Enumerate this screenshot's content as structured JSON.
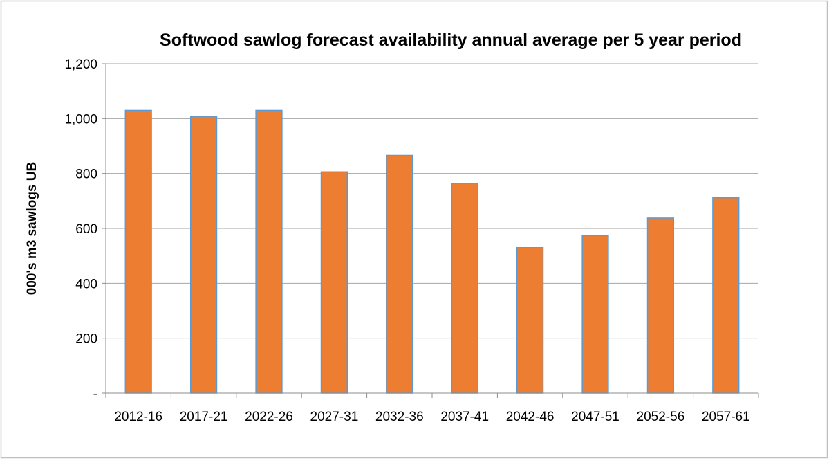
{
  "chart_data": {
    "type": "bar",
    "title": "Softwood sawlog forecast availability annual average per 5 year period",
    "ylabel": "000's m3 sawlogs UB",
    "xlabel": "",
    "categories": [
      "2012-16",
      "2017-21",
      "2022-26",
      "2027-31",
      "2032-36",
      "2037-41",
      "2042-46",
      "2047-51",
      "2052-56",
      "2057-61"
    ],
    "values": [
      1030,
      1008,
      1030,
      806,
      866,
      764,
      530,
      574,
      638,
      712
    ],
    "ylim": [
      0,
      1200
    ],
    "yticks": [
      {
        "value": 0,
        "label": "-"
      },
      {
        "value": 200,
        "label": "200"
      },
      {
        "value": 400,
        "label": "400"
      },
      {
        "value": 600,
        "label": "600"
      },
      {
        "value": 800,
        "label": "800"
      },
      {
        "value": 1000,
        "label": "1,000"
      },
      {
        "value": 1200,
        "label": "1,200"
      }
    ],
    "grid": true,
    "legend": "none",
    "colors": {
      "bar_fill": "#ED7D31",
      "bar_stroke": "#5B9BD5",
      "grid": "#A6A6A6",
      "axis": "#8C8C8C",
      "border": "#BFBFBF",
      "text": "#000000"
    }
  }
}
